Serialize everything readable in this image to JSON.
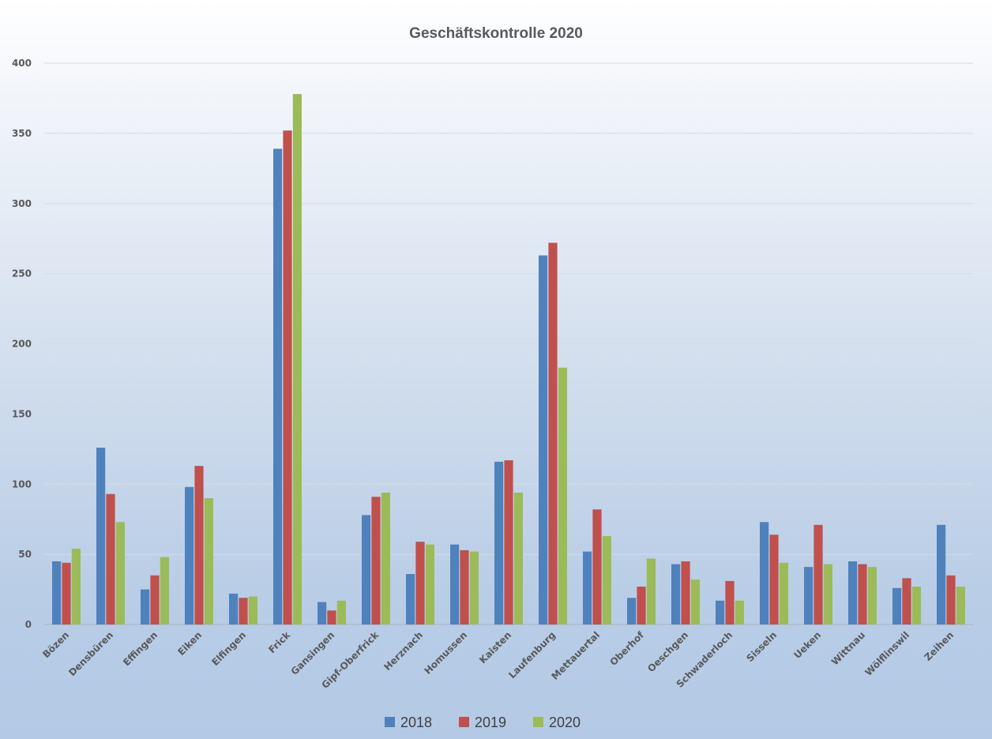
{
  "chart_data": {
    "type": "bar",
    "title": "Geschäftskontrolle 2020",
    "xlabel": "",
    "ylabel": "",
    "ylim": [
      0,
      400
    ],
    "yticks": [
      0,
      50,
      100,
      150,
      200,
      250,
      300,
      350,
      400
    ],
    "grid": true,
    "legend_position": "bottom",
    "categories": [
      "Bözen",
      "Densbüren",
      "Effingen",
      "Eiken",
      "Elfingen",
      "Frick",
      "Gansingen",
      "Gipf-Oberfrick",
      "Herznach",
      "Homussen",
      "Kaisten",
      "Laufenburg",
      "Mettauertal",
      "Oberhof",
      "Oeschgen",
      "Schwaderloch",
      "Sisseln",
      "Ueken",
      "Wittnau",
      "Wölflinswil",
      "Zeihen"
    ],
    "series": [
      {
        "name": "2018",
        "color": "#4f81bd",
        "values": [
          45,
          126,
          25,
          98,
          22,
          339,
          16,
          78,
          36,
          57,
          116,
          263,
          52,
          19,
          43,
          17,
          73,
          41,
          45,
          26,
          71
        ]
      },
      {
        "name": "2019",
        "color": "#c0504d",
        "values": [
          44,
          93,
          35,
          113,
          19,
          352,
          10,
          91,
          59,
          53,
          117,
          272,
          82,
          27,
          45,
          31,
          64,
          71,
          43,
          33,
          35
        ]
      },
      {
        "name": "2020",
        "color": "#9bbb59",
        "values": [
          54,
          73,
          48,
          90,
          20,
          378,
          17,
          94,
          57,
          52,
          94,
          183,
          63,
          47,
          32,
          17,
          44,
          43,
          41,
          27,
          27
        ]
      }
    ]
  }
}
